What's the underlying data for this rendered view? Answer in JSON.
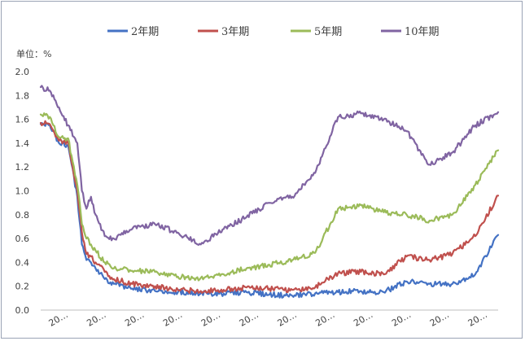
{
  "chart_data": {
    "type": "line",
    "unit_label": "单位：%",
    "ylim": [
      0.0,
      2.0
    ],
    "yticks": [
      "0.0",
      "0.2",
      "0.4",
      "0.6",
      "0.8",
      "1.0",
      "1.2",
      "1.4",
      "1.6",
      "1.8",
      "2.0"
    ],
    "xtick_labels": [
      "20…",
      "20…",
      "20…",
      "20…",
      "20…",
      "20…",
      "20…",
      "20…",
      "20…",
      "20…",
      "20…",
      "20…"
    ],
    "grid": false,
    "legend_position": "top",
    "x": [
      0,
      2,
      4,
      6,
      8,
      9,
      10,
      11,
      12,
      14,
      16,
      20,
      25,
      30,
      35,
      40,
      45,
      50,
      55,
      60,
      65,
      70,
      75,
      80,
      85,
      90,
      95,
      100
    ],
    "series": [
      {
        "name": "2年期",
        "color": "#4472c4",
        "values": [
          1.56,
          1.55,
          1.4,
          1.38,
          0.95,
          0.55,
          0.42,
          0.4,
          0.35,
          0.26,
          0.22,
          0.18,
          0.16,
          0.15,
          0.14,
          0.14,
          0.15,
          0.13,
          0.12,
          0.14,
          0.15,
          0.16,
          0.15,
          0.24,
          0.22,
          0.22,
          0.3,
          0.63
        ]
      },
      {
        "name": "3年期",
        "color": "#c0504d",
        "values": [
          1.57,
          1.56,
          1.42,
          1.4,
          1.0,
          0.65,
          0.47,
          0.45,
          0.4,
          0.32,
          0.26,
          0.22,
          0.2,
          0.17,
          0.16,
          0.17,
          0.19,
          0.18,
          0.17,
          0.19,
          0.31,
          0.32,
          0.3,
          0.45,
          0.42,
          0.47,
          0.62,
          0.96
        ]
      },
      {
        "name": "5年期",
        "color": "#9bbb59",
        "values": [
          1.64,
          1.62,
          1.45,
          1.44,
          1.05,
          0.72,
          0.6,
          0.55,
          0.5,
          0.4,
          0.35,
          0.33,
          0.32,
          0.28,
          0.27,
          0.3,
          0.35,
          0.38,
          0.42,
          0.48,
          0.85,
          0.88,
          0.82,
          0.8,
          0.75,
          0.8,
          1.05,
          1.34
        ]
      },
      {
        "name": "10年期",
        "color": "#8064a2",
        "values": [
          1.87,
          1.84,
          1.7,
          1.55,
          1.4,
          1.0,
          0.85,
          0.95,
          0.8,
          0.62,
          0.6,
          0.68,
          0.72,
          0.65,
          0.55,
          0.68,
          0.78,
          0.9,
          0.95,
          1.15,
          1.62,
          1.65,
          1.6,
          1.5,
          1.22,
          1.32,
          1.55,
          1.66
        ]
      }
    ]
  }
}
